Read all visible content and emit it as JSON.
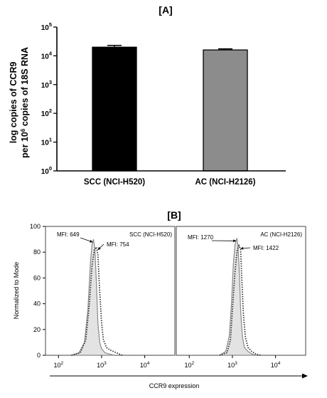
{
  "panel_a": {
    "title": "[A]",
    "ylabel_line1": "log copies of CCR9",
    "ylabel_line2_pre": "per 10",
    "ylabel_line2_sup": "6",
    "ylabel_line2_post": " copies of 18S RNA",
    "ytick_base": "10",
    "ytick_exps": [
      "0",
      "1",
      "2",
      "3",
      "4",
      "5"
    ]
  },
  "panel_b": {
    "title": "[B]",
    "ylabel": "Normalized to Mode",
    "xlabel": "CCR9 expression",
    "yticks": [
      "0",
      "20",
      "40",
      "60",
      "80",
      "100"
    ],
    "xtick_base": "10",
    "xtick_exps": [
      "2",
      "3",
      "4"
    ]
  },
  "chart_data": [
    {
      "type": "bar",
      "scale": "log",
      "ylim": [
        1,
        100000
      ],
      "categories": [
        "SCC (NCI-H520)",
        "AC (NCI-H2126)"
      ],
      "values": [
        20000,
        16000
      ],
      "error_upper": [
        23000,
        17500
      ],
      "colors": [
        "#000000",
        "#8c8c8c"
      ]
    },
    {
      "type": "area",
      "xscale": "log",
      "xlim": [
        50,
        50000
      ],
      "ylim": [
        0,
        100
      ],
      "panel_label": "SCC (NCI-H520)",
      "annotations": [
        {
          "text": "MFI: 649",
          "x": 649
        },
        {
          "text": "MFI: 754",
          "x": 754
        }
      ],
      "series": [
        {
          "style": "filled-gray",
          "x": [
            200,
            300,
            400,
            480,
            550,
            600,
            649,
            700,
            760,
            820,
            900,
            1000,
            1200,
            1500,
            2000
          ],
          "y": [
            0,
            2,
            10,
            35,
            72,
            86,
            90,
            82,
            55,
            25,
            10,
            5,
            2,
            1,
            0
          ]
        },
        {
          "style": "dotted",
          "x": [
            200,
            320,
            430,
            520,
            600,
            680,
            754,
            820,
            900,
            1000,
            1100,
            1300,
            1600,
            2200,
            3000
          ],
          "y": [
            0,
            2,
            12,
            40,
            70,
            82,
            84,
            78,
            50,
            25,
            12,
            6,
            4,
            2,
            0
          ]
        }
      ]
    },
    {
      "type": "area",
      "xscale": "log",
      "xlim": [
        50,
        50000
      ],
      "ylim": [
        0,
        100
      ],
      "panel_label": "AC (NCI-H2126)",
      "annotations": [
        {
          "text": "MFI: 1270",
          "x": 1270
        },
        {
          "text": "MFI: 1422",
          "x": 1422
        }
      ],
      "series": [
        {
          "style": "filled-gray",
          "x": [
            500,
            700,
            850,
            950,
            1050,
            1150,
            1270,
            1350,
            1450,
            1550,
            1700,
            1900,
            2300,
            2800,
            3500
          ],
          "y": [
            0,
            3,
            15,
            40,
            70,
            86,
            91,
            85,
            65,
            35,
            15,
            6,
            3,
            1,
            0
          ]
        },
        {
          "style": "dotted",
          "x": [
            500,
            750,
            900,
            1000,
            1150,
            1300,
            1422,
            1550,
            1650,
            1800,
            2000,
            2300,
            2800,
            3500,
            4500
          ],
          "y": [
            0,
            2,
            12,
            35,
            65,
            82,
            85,
            82,
            60,
            32,
            14,
            6,
            3,
            1,
            0
          ]
        }
      ]
    }
  ]
}
